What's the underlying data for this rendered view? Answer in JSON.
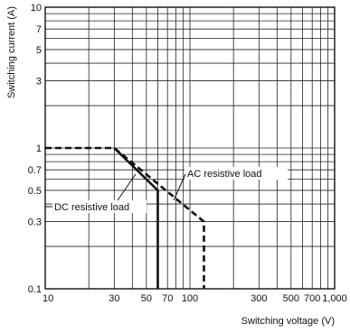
{
  "chart_data": {
    "type": "line",
    "title": "",
    "xlabel": "Switching voltage (V)",
    "ylabel": "Switching current (A)",
    "x_scale": "log",
    "y_scale": "log",
    "xlim": [
      10,
      1000
    ],
    "ylim": [
      0.1,
      10
    ],
    "grid": true,
    "x_ticks": [
      {
        "value": 10,
        "label": "10"
      },
      {
        "value": 30,
        "label": "30"
      },
      {
        "value": 50,
        "label": "50"
      },
      {
        "value": 70,
        "label": "70"
      },
      {
        "value": 100,
        "label": "100"
      },
      {
        "value": 300,
        "label": "300"
      },
      {
        "value": 500,
        "label": "500"
      },
      {
        "value": 700,
        "label": "700"
      },
      {
        "value": 1000,
        "label": "1,000"
      }
    ],
    "y_ticks": [
      {
        "value": 0.1,
        "label": "0.1"
      },
      {
        "value": 0.3,
        "label": "0.3"
      },
      {
        "value": 0.5,
        "label": "0.5"
      },
      {
        "value": 0.7,
        "label": "0.7"
      },
      {
        "value": 1,
        "label": "1"
      },
      {
        "value": 3,
        "label": "3"
      },
      {
        "value": 5,
        "label": "5"
      },
      {
        "value": 7,
        "label": "7"
      },
      {
        "value": 10,
        "label": "10"
      }
    ],
    "series": [
      {
        "name": "DC resistive load",
        "style": "solid",
        "color": "#111111",
        "x": [
          30,
          60,
          60
        ],
        "y": [
          1,
          0.5,
          0.1
        ]
      },
      {
        "name": "AC resistive load",
        "style": "dashed",
        "color": "#111111",
        "x": [
          10,
          30,
          125,
          125
        ],
        "y": [
          1,
          1,
          0.3,
          0.1
        ]
      }
    ]
  }
}
